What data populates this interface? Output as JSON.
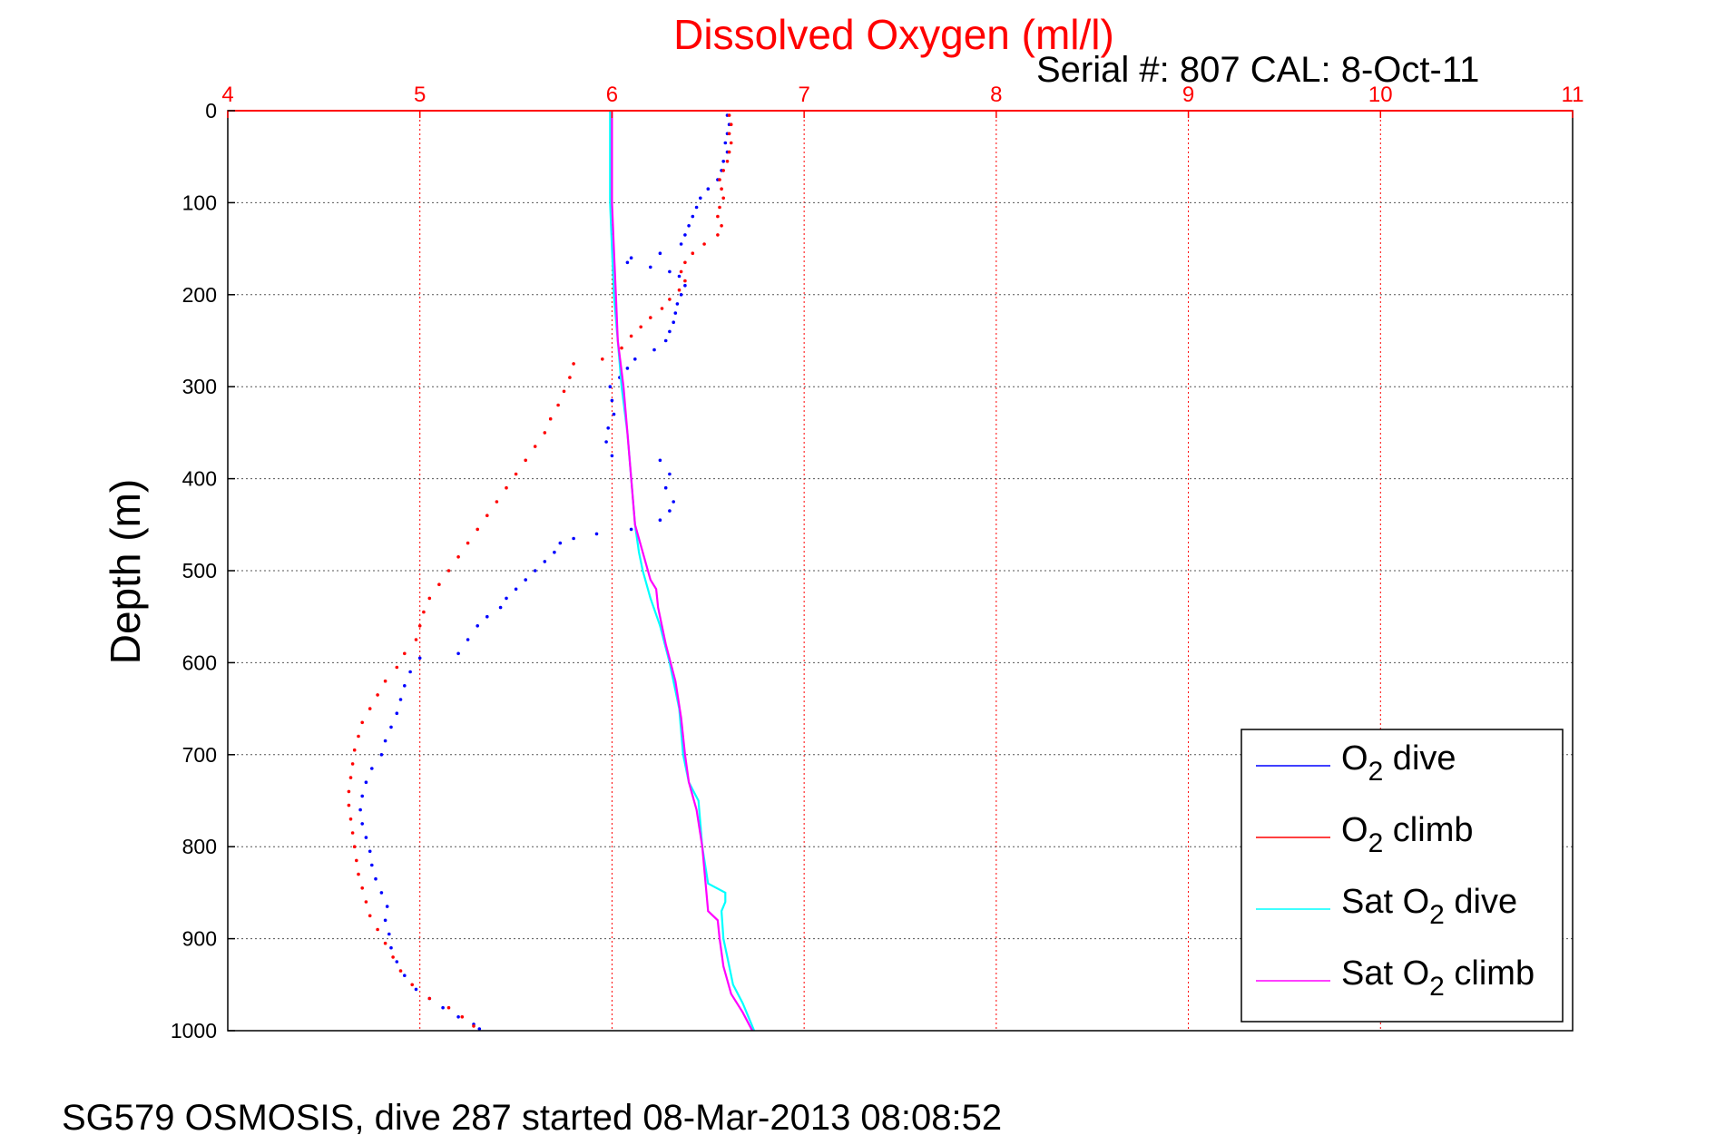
{
  "footer": "SG579 OSMOSIS, dive 287 started 08-Mar-2013 08:08:52",
  "colors": {
    "o2_dive": "#0000ff",
    "o2_climb": "#ff0000",
    "sat_dive": "#00ffff",
    "sat_climb": "#ff00ff",
    "top_axis": "#ff0000",
    "grid": "#555555"
  },
  "chart_data": {
    "type": "scatter",
    "title": "Dissolved Oxygen (ml/l)",
    "subtitle": "Serial #: 807  CAL: 8-Oct-11",
    "ylabel": "Depth (m)",
    "xlim": [
      4,
      11
    ],
    "ylim": [
      0,
      1000
    ],
    "y_reversed": true,
    "x_axis_position": "top",
    "grid": true,
    "legend_position": "bottom-right",
    "xticks": [
      "4",
      "5",
      "6",
      "7",
      "8",
      "9",
      "10",
      "11"
    ],
    "yticks": [
      "0",
      "100",
      "200",
      "300",
      "400",
      "500",
      "600",
      "700",
      "800",
      "900",
      "1000"
    ],
    "legend": [
      {
        "prefix": "O",
        "sub": "2",
        "suffix": " dive"
      },
      {
        "prefix": "O",
        "sub": "2",
        "suffix": " climb"
      },
      {
        "prefix": "Sat O",
        "sub": "2",
        "suffix": " dive"
      },
      {
        "prefix": "Sat O",
        "sub": "2",
        "suffix": " climb"
      }
    ],
    "series": [
      {
        "key": "o2_dive",
        "style": "dots",
        "points": [
          [
            6.6,
            5
          ],
          [
            6.61,
            15
          ],
          [
            6.6,
            25
          ],
          [
            6.59,
            35
          ],
          [
            6.6,
            45
          ],
          [
            6.58,
            55
          ],
          [
            6.57,
            65
          ],
          [
            6.55,
            75
          ],
          [
            6.5,
            85
          ],
          [
            6.46,
            95
          ],
          [
            6.44,
            105
          ],
          [
            6.42,
            115
          ],
          [
            6.4,
            125
          ],
          [
            6.38,
            135
          ],
          [
            6.36,
            145
          ],
          [
            6.25,
            155
          ],
          [
            6.1,
            160
          ],
          [
            6.08,
            165
          ],
          [
            6.2,
            170
          ],
          [
            6.3,
            175
          ],
          [
            6.35,
            180
          ],
          [
            6.38,
            190
          ],
          [
            6.36,
            200
          ],
          [
            6.34,
            210
          ],
          [
            6.33,
            220
          ],
          [
            6.32,
            230
          ],
          [
            6.3,
            240
          ],
          [
            6.28,
            250
          ],
          [
            6.22,
            260
          ],
          [
            6.12,
            270
          ],
          [
            6.08,
            280
          ],
          [
            6.04,
            290
          ],
          [
            5.99,
            300
          ],
          [
            6.0,
            315
          ],
          [
            6.01,
            330
          ],
          [
            5.98,
            345
          ],
          [
            5.97,
            360
          ],
          [
            6.0,
            375
          ],
          [
            6.25,
            380
          ],
          [
            6.3,
            395
          ],
          [
            6.28,
            410
          ],
          [
            6.32,
            425
          ],
          [
            6.3,
            435
          ],
          [
            6.25,
            445
          ],
          [
            6.1,
            455
          ],
          [
            5.92,
            460
          ],
          [
            5.8,
            465
          ],
          [
            5.73,
            470
          ],
          [
            5.7,
            480
          ],
          [
            5.65,
            490
          ],
          [
            5.6,
            500
          ],
          [
            5.55,
            510
          ],
          [
            5.5,
            520
          ],
          [
            5.45,
            530
          ],
          [
            5.42,
            540
          ],
          [
            5.35,
            550
          ],
          [
            5.3,
            560
          ],
          [
            5.25,
            575
          ],
          [
            5.2,
            590
          ],
          [
            5.0,
            595
          ],
          [
            4.95,
            610
          ],
          [
            4.92,
            625
          ],
          [
            4.9,
            640
          ],
          [
            4.88,
            655
          ],
          [
            4.85,
            670
          ],
          [
            4.82,
            685
          ],
          [
            4.8,
            700
          ],
          [
            4.75,
            715
          ],
          [
            4.72,
            730
          ],
          [
            4.7,
            745
          ],
          [
            4.69,
            760
          ],
          [
            4.7,
            775
          ],
          [
            4.72,
            790
          ],
          [
            4.74,
            805
          ],
          [
            4.75,
            820
          ],
          [
            4.77,
            835
          ],
          [
            4.8,
            850
          ],
          [
            4.83,
            865
          ],
          [
            4.82,
            880
          ],
          [
            4.84,
            895
          ],
          [
            4.85,
            910
          ],
          [
            4.88,
            925
          ],
          [
            4.92,
            940
          ],
          [
            4.98,
            955
          ],
          [
            5.05,
            965
          ],
          [
            5.12,
            975
          ],
          [
            5.2,
            985
          ],
          [
            5.28,
            993
          ],
          [
            5.31,
            998
          ]
        ]
      },
      {
        "key": "o2_climb",
        "style": "dots",
        "points": [
          [
            6.61,
            5
          ],
          [
            6.62,
            15
          ],
          [
            6.61,
            25
          ],
          [
            6.62,
            35
          ],
          [
            6.61,
            45
          ],
          [
            6.6,
            55
          ],
          [
            6.58,
            65
          ],
          [
            6.56,
            75
          ],
          [
            6.57,
            85
          ],
          [
            6.58,
            95
          ],
          [
            6.56,
            105
          ],
          [
            6.55,
            115
          ],
          [
            6.57,
            125
          ],
          [
            6.55,
            135
          ],
          [
            6.48,
            145
          ],
          [
            6.42,
            155
          ],
          [
            6.38,
            165
          ],
          [
            6.36,
            175
          ],
          [
            6.38,
            185
          ],
          [
            6.35,
            195
          ],
          [
            6.3,
            205
          ],
          [
            6.26,
            215
          ],
          [
            6.2,
            225
          ],
          [
            6.15,
            235
          ],
          [
            6.1,
            245
          ],
          [
            6.05,
            258
          ],
          [
            5.95,
            270
          ],
          [
            5.8,
            275
          ],
          [
            5.78,
            290
          ],
          [
            5.75,
            305
          ],
          [
            5.72,
            320
          ],
          [
            5.68,
            335
          ],
          [
            5.65,
            350
          ],
          [
            5.6,
            365
          ],
          [
            5.55,
            380
          ],
          [
            5.5,
            395
          ],
          [
            5.45,
            410
          ],
          [
            5.4,
            425
          ],
          [
            5.35,
            440
          ],
          [
            5.3,
            455
          ],
          [
            5.25,
            470
          ],
          [
            5.2,
            485
          ],
          [
            5.15,
            500
          ],
          [
            5.1,
            515
          ],
          [
            5.05,
            530
          ],
          [
            5.02,
            545
          ],
          [
            5.0,
            560
          ],
          [
            4.98,
            575
          ],
          [
            4.92,
            590
          ],
          [
            4.88,
            605
          ],
          [
            4.82,
            620
          ],
          [
            4.78,
            635
          ],
          [
            4.74,
            650
          ],
          [
            4.7,
            665
          ],
          [
            4.68,
            680
          ],
          [
            4.66,
            695
          ],
          [
            4.65,
            710
          ],
          [
            4.64,
            725
          ],
          [
            4.63,
            740
          ],
          [
            4.63,
            755
          ],
          [
            4.64,
            770
          ],
          [
            4.65,
            785
          ],
          [
            4.66,
            800
          ],
          [
            4.67,
            815
          ],
          [
            4.68,
            830
          ],
          [
            4.7,
            845
          ],
          [
            4.72,
            860
          ],
          [
            4.74,
            875
          ],
          [
            4.78,
            890
          ],
          [
            4.82,
            905
          ],
          [
            4.86,
            920
          ],
          [
            4.9,
            935
          ],
          [
            4.96,
            950
          ],
          [
            5.05,
            965
          ],
          [
            5.15,
            975
          ],
          [
            5.22,
            985
          ],
          [
            5.28,
            995
          ]
        ]
      },
      {
        "key": "sat_dive",
        "style": "line",
        "points": [
          [
            5.99,
            0
          ],
          [
            5.99,
            50
          ],
          [
            5.99,
            100
          ],
          [
            6.0,
            150
          ],
          [
            6.01,
            200
          ],
          [
            6.03,
            250
          ],
          [
            6.05,
            300
          ],
          [
            6.08,
            350
          ],
          [
            6.1,
            400
          ],
          [
            6.12,
            450
          ],
          [
            6.14,
            480
          ],
          [
            6.16,
            500
          ],
          [
            6.2,
            530
          ],
          [
            6.25,
            560
          ],
          [
            6.3,
            600
          ],
          [
            6.35,
            650
          ],
          [
            6.37,
            700
          ],
          [
            6.4,
            730
          ],
          [
            6.45,
            750
          ],
          [
            6.47,
            800
          ],
          [
            6.5,
            840
          ],
          [
            6.59,
            850
          ],
          [
            6.59,
            860
          ],
          [
            6.57,
            870
          ],
          [
            6.58,
            900
          ],
          [
            6.6,
            920
          ],
          [
            6.63,
            950
          ],
          [
            6.68,
            970
          ],
          [
            6.72,
            990
          ],
          [
            6.74,
            1000
          ]
        ]
      },
      {
        "key": "sat_climb",
        "style": "line",
        "points": [
          [
            6.0,
            0
          ],
          [
            6.0,
            50
          ],
          [
            6.0,
            100
          ],
          [
            6.01,
            150
          ],
          [
            6.02,
            200
          ],
          [
            6.03,
            250
          ],
          [
            6.06,
            300
          ],
          [
            6.08,
            350
          ],
          [
            6.1,
            400
          ],
          [
            6.12,
            450
          ],
          [
            6.16,
            480
          ],
          [
            6.2,
            510
          ],
          [
            6.23,
            520
          ],
          [
            6.24,
            540
          ],
          [
            6.28,
            580
          ],
          [
            6.33,
            620
          ],
          [
            6.36,
            660
          ],
          [
            6.38,
            700
          ],
          [
            6.4,
            730
          ],
          [
            6.44,
            760
          ],
          [
            6.47,
            800
          ],
          [
            6.5,
            870
          ],
          [
            6.55,
            880
          ],
          [
            6.56,
            900
          ],
          [
            6.58,
            930
          ],
          [
            6.62,
            960
          ],
          [
            6.68,
            980
          ],
          [
            6.73,
            1000
          ]
        ]
      }
    ]
  }
}
